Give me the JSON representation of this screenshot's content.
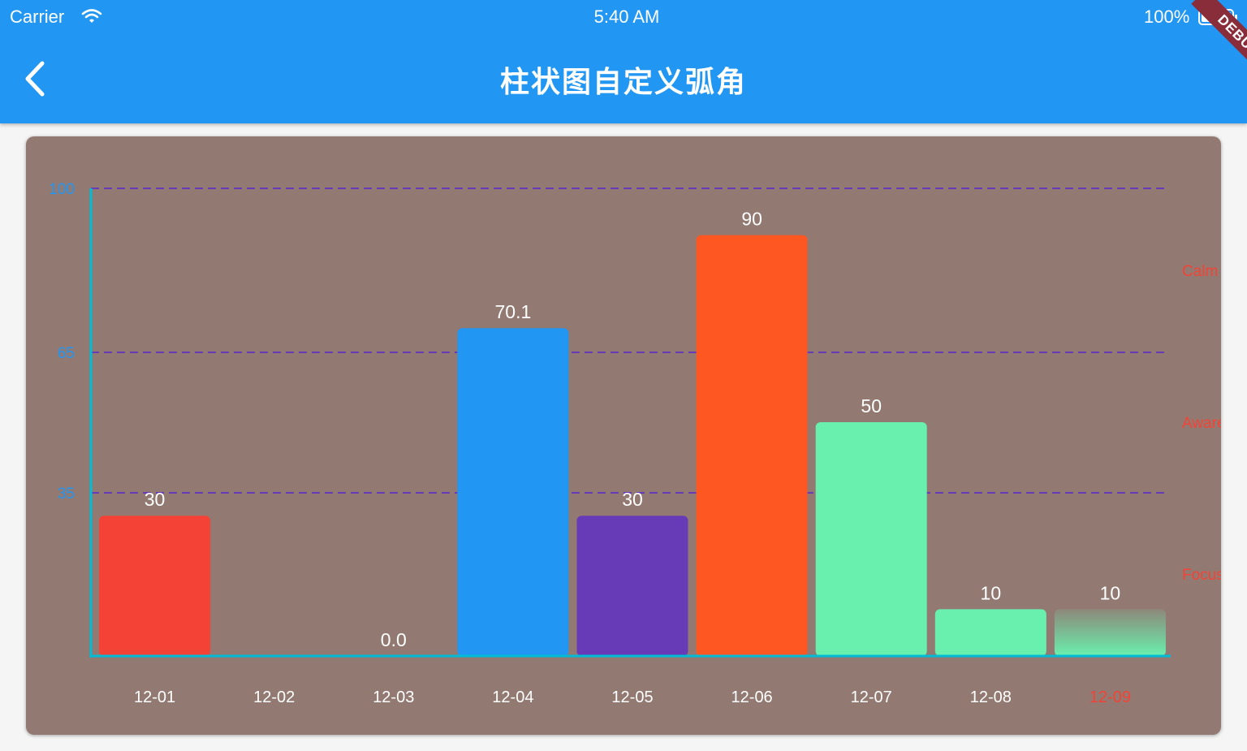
{
  "status": {
    "carrier": "Carrier",
    "time": "5:40 AM",
    "battery": "100%"
  },
  "appbar": {
    "title": "柱状图自定义弧角",
    "debug": "DEBUG"
  },
  "colors": {
    "primary": "#2196f3",
    "card": "#927a72",
    "axis": "#00bcd4",
    "grid": "#673ab7",
    "ytick": "#2196f3",
    "label": "#ffffff",
    "right_label": "#f44336"
  },
  "chart_data": {
    "type": "bar",
    "categories": [
      "12-01",
      "12-02",
      "12-03",
      "12-04",
      "12-05",
      "12-06",
      "12-07",
      "12-08",
      "12-09"
    ],
    "values": [
      30,
      0,
      0.0,
      70.1,
      30,
      90,
      50,
      10,
      10
    ],
    "value_labels": [
      "30",
      "",
      "0.0",
      "70.1",
      "30",
      "90",
      "50",
      "10",
      "10"
    ],
    "bar_colors": [
      "#f44336",
      "#f44336",
      "#f44336",
      "#2196f3",
      "#673ab7",
      "#ff5722",
      "#69f0ae",
      "#69f0ae",
      "#69f0ae"
    ],
    "highlight_category": "12-09",
    "ylim": [
      0,
      100
    ],
    "yticks": [
      35,
      65,
      100
    ],
    "gridlines": [
      35,
      65,
      100
    ],
    "right_labels": [
      {
        "text": "Calm",
        "value": 82.5
      },
      {
        "text": "Aware",
        "value": 50
      },
      {
        "text": "Focused",
        "value": 17.5
      }
    ]
  }
}
